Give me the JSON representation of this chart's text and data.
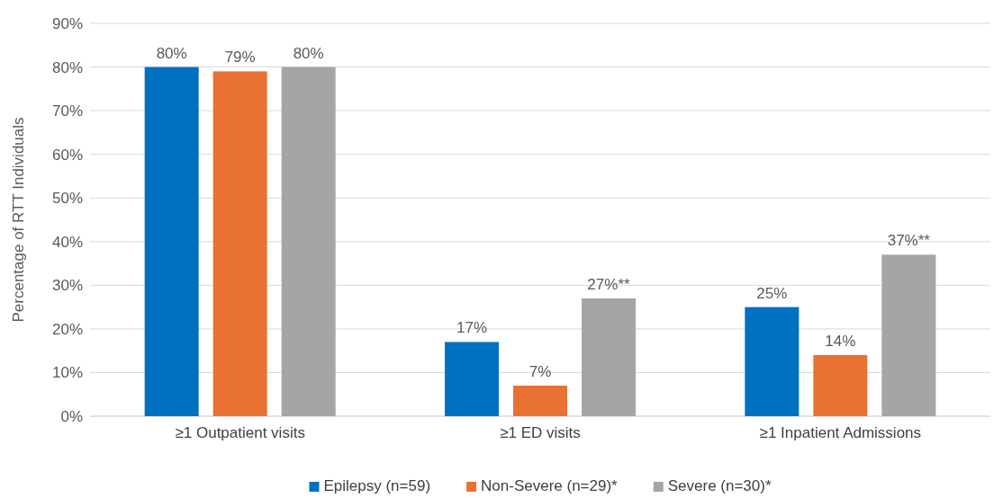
{
  "chart_data": {
    "type": "bar",
    "ylabel": "Percentage of RTT Individuals",
    "categories": [
      "≥1 Outpatient visits",
      "≥1 ED visits",
      "≥1 Inpatient Admissions"
    ],
    "series": [
      {
        "name": "Epilepsy (n=59)",
        "color": "#0070c0",
        "values": [
          80,
          17,
          25
        ],
        "value_labels": [
          "80%",
          "17%",
          "25%"
        ]
      },
      {
        "name": "Non-Severe (n=29)*",
        "color": "#e97132",
        "values": [
          79,
          7,
          14
        ],
        "value_labels": [
          "79%",
          "7%",
          "14%"
        ]
      },
      {
        "name": "Severe (n=30)*",
        "color": "#a5a5a5",
        "values": [
          80,
          27,
          37
        ],
        "value_labels": [
          "80%",
          "27%**",
          "37%**"
        ]
      }
    ],
    "ylim": [
      0,
      90
    ],
    "yticks": [
      {
        "value": 0,
        "label": "0%"
      },
      {
        "value": 10,
        "label": "10%"
      },
      {
        "value": 20,
        "label": "20%"
      },
      {
        "value": 30,
        "label": "30%"
      },
      {
        "value": 40,
        "label": "40%"
      },
      {
        "value": 50,
        "label": "50%"
      },
      {
        "value": 60,
        "label": "60%"
      },
      {
        "value": 70,
        "label": "70%"
      },
      {
        "value": 80,
        "label": "80%"
      },
      {
        "value": 90,
        "label": "90%"
      }
    ],
    "grid": "y",
    "legend": "bottom"
  }
}
